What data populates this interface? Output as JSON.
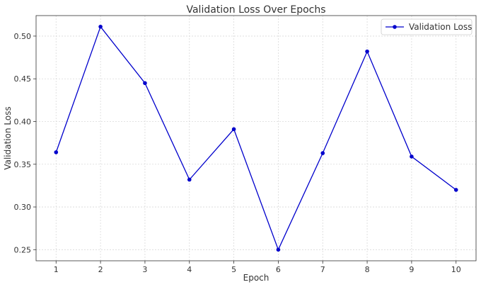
{
  "chart_data": {
    "type": "line",
    "title": "Validation Loss Over Epochs",
    "xlabel": "Epoch",
    "ylabel": "Validation Loss",
    "x": [
      1,
      2,
      3,
      4,
      5,
      6,
      7,
      8,
      9,
      10
    ],
    "series": [
      {
        "name": "Validation Loss",
        "color": "#0000cc",
        "values": [
          0.364,
          0.511,
          0.445,
          0.332,
          0.391,
          0.25,
          0.363,
          0.482,
          0.359,
          0.32
        ]
      }
    ],
    "xlim": [
      0.55,
      10.45
    ],
    "ylim": [
      0.237,
      0.524
    ],
    "xticks": [
      1,
      2,
      3,
      4,
      5,
      6,
      7,
      8,
      9,
      10
    ],
    "yticks": [
      0.25,
      0.3,
      0.35,
      0.4,
      0.45,
      0.5
    ],
    "ytick_labels": [
      "0.25",
      "0.30",
      "0.35",
      "0.40",
      "0.45",
      "0.50"
    ],
    "grid": true,
    "legend_position": "top-right"
  }
}
